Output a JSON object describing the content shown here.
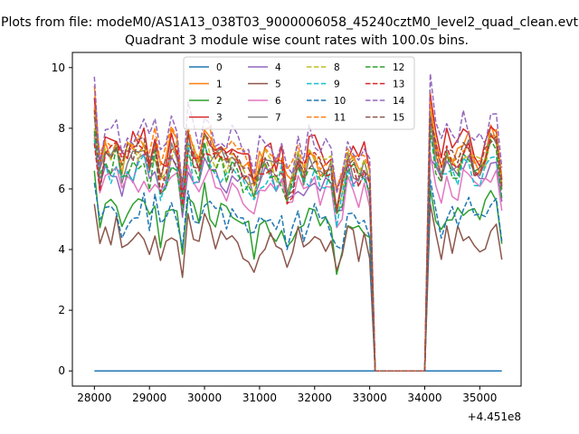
{
  "chart_data": {
    "type": "line",
    "suptitle": "Plots from file: modeM0/AS1A13_038T03_9000006058_45240cztM0_level2_quad_clean.evt",
    "title": "Quadrant 3 module wise count rates with 100.0s bins.",
    "xlabel": "",
    "ylabel": "",
    "x_offset_label": "+4.451e8",
    "xlim": [
      27600,
      35750
    ],
    "ylim": [
      -0.5,
      10.5
    ],
    "xticks": [
      28000,
      29000,
      30000,
      31000,
      32000,
      33000,
      34000,
      35000
    ],
    "xtick_labels": [
      "28000",
      "29000",
      "30000",
      "31000",
      "32000",
      "33000",
      "34000",
      "35000"
    ],
    "yticks": [
      0,
      2,
      4,
      6,
      8,
      10
    ],
    "ytick_labels": [
      "0",
      "2",
      "4",
      "6",
      "8",
      "10"
    ],
    "x_start": 28000,
    "x_step": 100,
    "x_end": 35400,
    "gap": [
      33100,
      34000
    ],
    "legend": {
      "location": "upper center",
      "ncol": 4
    },
    "series": [
      {
        "name": "0",
        "color": "#1f77b4",
        "dash": "solid",
        "base": 0,
        "amp": 0,
        "flat_zero": true
      },
      {
        "name": "1",
        "color": "#ff7f0e",
        "dash": "solid",
        "base": 7.0,
        "amp": 0.9,
        "start": 9.4,
        "peak": 9.2
      },
      {
        "name": "2",
        "color": "#2ca02c",
        "dash": "solid",
        "base": 5.0,
        "amp": 0.9,
        "start": 6.6,
        "peak": 6.0
      },
      {
        "name": "3",
        "color": "#d62728",
        "dash": "solid",
        "base": 7.2,
        "amp": 1.0,
        "start": 9.0,
        "peak": 9.1
      },
      {
        "name": "4",
        "color": "#9467bd",
        "dash": "solid",
        "base": 6.3,
        "amp": 0.8,
        "start": 7.8,
        "peak": 7.0
      },
      {
        "name": "5",
        "color": "#8c564b",
        "dash": "solid",
        "base": 4.3,
        "amp": 0.7,
        "start": 5.5,
        "peak": 5.5
      },
      {
        "name": "6",
        "color": "#e377c2",
        "dash": "solid",
        "base": 6.0,
        "amp": 0.8,
        "start": 7.7,
        "peak": 7.2
      },
      {
        "name": "7",
        "color": "#7f7f7f",
        "dash": "solid",
        "base": 6.8,
        "amp": 0.9,
        "start": 8.4,
        "peak": 8.5
      },
      {
        "name": "8",
        "color": "#bcbd22",
        "dash": "dashed",
        "base": 6.9,
        "amp": 0.9,
        "start": 8.0,
        "peak": 8.7
      },
      {
        "name": "9",
        "color": "#17becf",
        "dash": "dashed",
        "base": 6.4,
        "amp": 0.8,
        "start": 7.6,
        "peak": 7.8
      },
      {
        "name": "10",
        "color": "#1f77b4",
        "dash": "dashed",
        "base": 5.0,
        "amp": 0.8,
        "start": 6.2,
        "peak": 6.3
      },
      {
        "name": "11",
        "color": "#ff7f0e",
        "dash": "dashed",
        "base": 7.2,
        "amp": 0.9,
        "start": 8.7,
        "peak": 8.9
      },
      {
        "name": "12",
        "color": "#2ca02c",
        "dash": "dashed",
        "base": 6.5,
        "amp": 0.9,
        "start": 7.9,
        "peak": 8.0
      },
      {
        "name": "13",
        "color": "#d62728",
        "dash": "dashed",
        "base": 6.8,
        "amp": 0.9,
        "start": 7.5,
        "peak": 8.3
      },
      {
        "name": "14",
        "color": "#9467bd",
        "dash": "dashed",
        "base": 7.6,
        "amp": 1.0,
        "start": 9.7,
        "peak": 9.8
      },
      {
        "name": "15",
        "color": "#8c564b",
        "dash": "dashed",
        "base": 6.9,
        "amp": 0.9,
        "start": 8.6,
        "peak": 8.4
      }
    ]
  }
}
